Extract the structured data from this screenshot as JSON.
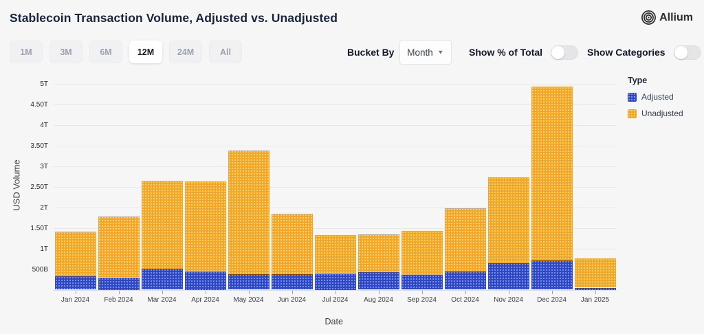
{
  "header": {
    "title": "Stablecoin Transaction Volume, Adjusted vs. Unadjusted",
    "logo_text": "Allium"
  },
  "controls": {
    "range_buttons": [
      {
        "label": "1M",
        "selected": false
      },
      {
        "label": "3M",
        "selected": false
      },
      {
        "label": "6M",
        "selected": false
      },
      {
        "label": "12M",
        "selected": true
      },
      {
        "label": "24M",
        "selected": false
      },
      {
        "label": "All",
        "selected": false
      }
    ],
    "bucket_by_label": "Bucket By",
    "bucket_value": "Month",
    "toggles": [
      {
        "label": "Show % of Total",
        "on": false
      },
      {
        "label": "Show Categories",
        "on": false
      }
    ]
  },
  "legend": {
    "title": "Type",
    "items": [
      {
        "label": "Adjusted",
        "color": "#2b46c6"
      },
      {
        "label": "Unadjusted",
        "color": "#f6a61e"
      }
    ]
  },
  "chart_data": {
    "type": "bar",
    "stacked": true,
    "title": "Stablecoin Transaction Volume, Adjusted vs. Unadjusted",
    "xlabel": "Date",
    "ylabel": "USD Volume",
    "values_unit": "trillions USD",
    "ylim": [
      0,
      5
    ],
    "grid": true,
    "legend_position": "right",
    "categories": [
      "Jan 2024",
      "Feb 2024",
      "Mar 2024",
      "Apr 2024",
      "May 2024",
      "Jun 2024",
      "Jul 2024",
      "Aug 2024",
      "Sep 2024",
      "Oct 2024",
      "Nov 2024",
      "Dec 2024",
      "Jan 2025"
    ],
    "series": [
      {
        "name": "Adjusted",
        "color": "#2b46c6",
        "values": [
          0.33,
          0.3,
          0.51,
          0.45,
          0.38,
          0.37,
          0.4,
          0.42,
          0.36,
          0.44,
          0.64,
          0.71,
          0.05
        ]
      },
      {
        "name": "Unadjusted",
        "color": "#f6a61e",
        "values": [
          1.08,
          1.47,
          2.13,
          2.17,
          2.99,
          1.48,
          0.92,
          0.93,
          1.07,
          1.54,
          2.08,
          4.22,
          0.71
        ]
      }
    ],
    "stack_totals": [
      1.41,
      1.77,
      2.64,
      2.62,
      3.37,
      1.85,
      1.32,
      1.35,
      1.43,
      1.98,
      2.72,
      4.93,
      0.76
    ],
    "yticks": [
      {
        "value": 5.0,
        "label": "5T"
      },
      {
        "value": 4.5,
        "label": "4.50T"
      },
      {
        "value": 4.0,
        "label": "4T"
      },
      {
        "value": 3.5,
        "label": "3.50T"
      },
      {
        "value": 3.0,
        "label": "3T"
      },
      {
        "value": 2.5,
        "label": "2.50T"
      },
      {
        "value": 2.0,
        "label": "2T"
      },
      {
        "value": 1.5,
        "label": "1.50T"
      },
      {
        "value": 1.0,
        "label": "1T"
      },
      {
        "value": 0.5,
        "label": "500B"
      }
    ]
  }
}
